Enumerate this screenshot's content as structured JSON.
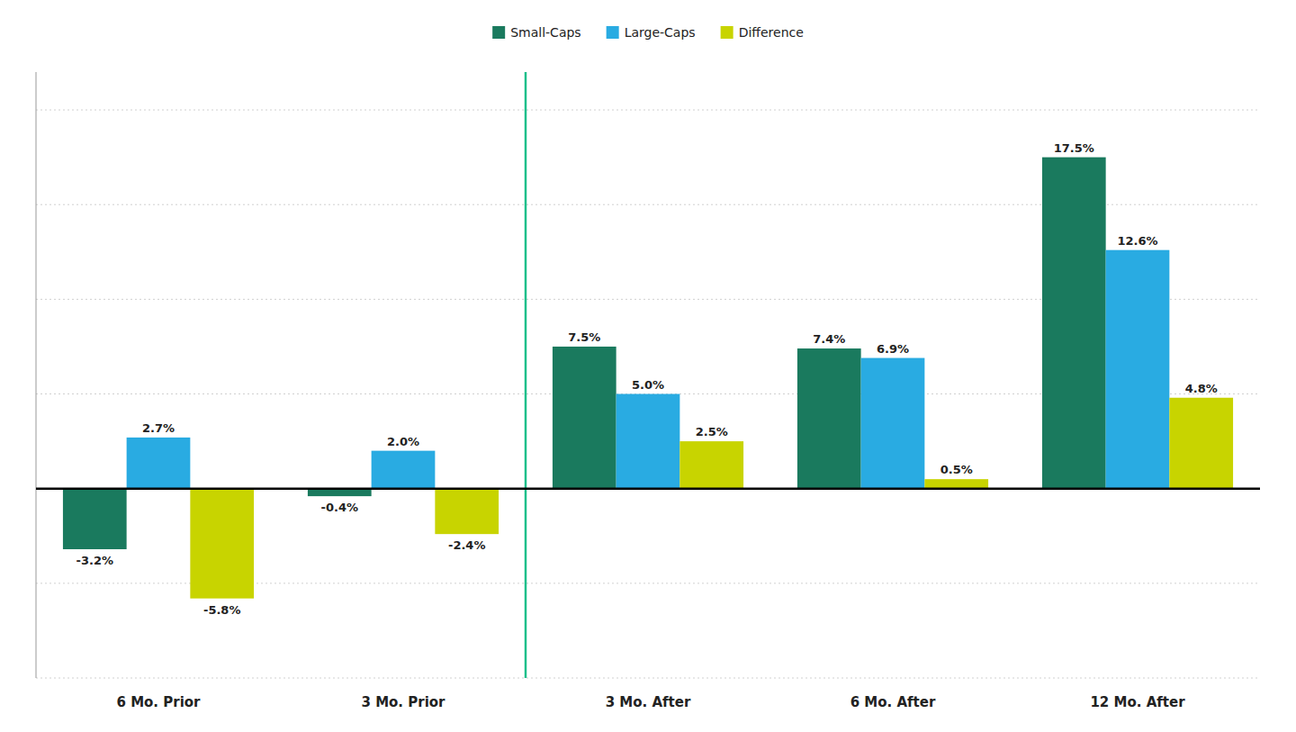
{
  "chart_data": {
    "type": "bar",
    "categories": [
      "6 Mo. Prior",
      "3 Mo. Prior",
      "3 Mo. After",
      "6 Mo. After",
      "12 Mo. After"
    ],
    "series": [
      {
        "name": "Small-Caps",
        "color": "#1a7a5e",
        "values": [
          -3.2,
          -0.4,
          7.5,
          7.4,
          17.5
        ],
        "value_labels": [
          "-3.2%",
          "-0.4%",
          "7.5%",
          "7.4%",
          "17.5%"
        ]
      },
      {
        "name": "Large-Caps",
        "color": "#29abe2",
        "values": [
          2.7,
          2.0,
          5.0,
          6.9,
          12.6
        ],
        "value_labels": [
          "2.7%",
          "2.0%",
          "5.0%",
          "6.9%",
          "12.6%"
        ]
      },
      {
        "name": "Difference",
        "color": "#c8d400",
        "values": [
          -5.8,
          -2.4,
          2.5,
          0.5,
          4.8
        ],
        "value_labels": [
          "-5.8%",
          "-2.4%",
          "2.5%",
          "0.5%",
          "4.8%"
        ]
      }
    ],
    "ylim": [
      -10,
      22
    ],
    "yticks": [
      -10,
      -5,
      0,
      5,
      10,
      15,
      20
    ],
    "grid": true,
    "legend": "top",
    "data_labels": true,
    "tick_labels": "x"
  }
}
